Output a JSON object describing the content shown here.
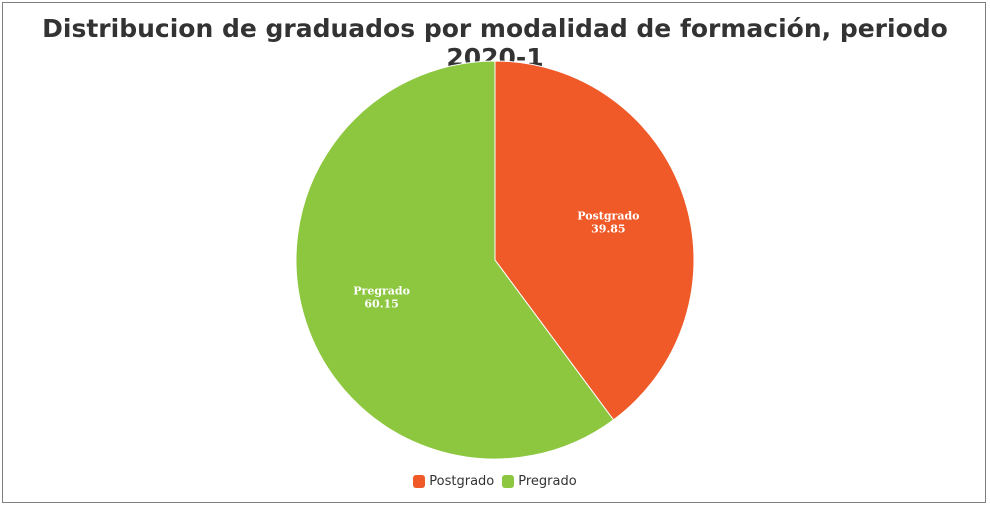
{
  "chart_data": {
    "type": "pie",
    "title": "Distribucion de graduados por modalidad de formación, periodo 2020-1",
    "categories": [
      "Postgrado",
      "Pregrado"
    ],
    "values": [
      39.85,
      60.15
    ],
    "value_labels": [
      "39.85",
      "60.15"
    ],
    "colors": [
      "#f05a28",
      "#8dc63f"
    ],
    "legend_position": "bottom-center",
    "start_angle_deg": 0,
    "direction": "clockwise"
  }
}
